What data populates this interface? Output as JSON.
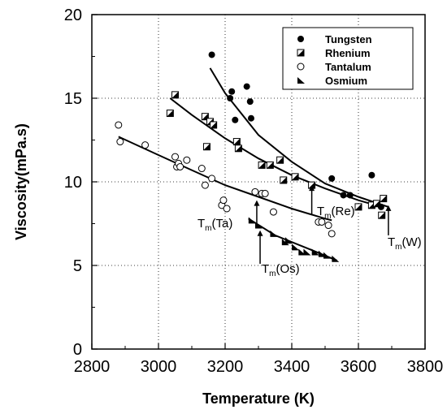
{
  "chart_data": {
    "type": "scatter",
    "xlabel": "Temperature (K)",
    "ylabel": "Viscosity(mPa.s)",
    "xlim": [
      2800,
      3800
    ],
    "ylim": [
      0,
      20
    ],
    "xticks": [
      2800,
      3000,
      3200,
      3400,
      3600,
      3800
    ],
    "yticks": [
      0,
      5,
      10,
      15,
      20
    ],
    "legend_position": "top-right",
    "series": [
      {
        "name": "Tungsten",
        "marker": "filled-circle",
        "points": [
          [
            3160,
            17.6
          ],
          [
            3215,
            15.0
          ],
          [
            3220,
            15.4
          ],
          [
            3230,
            13.7
          ],
          [
            3265,
            15.7
          ],
          [
            3275,
            14.8
          ],
          [
            3278,
            13.8
          ],
          [
            3520,
            10.2
          ],
          [
            3555,
            9.2
          ],
          [
            3575,
            9.2
          ],
          [
            3640,
            10.4
          ],
          [
            3668,
            8.5
          ]
        ],
        "fit": [
          [
            3155,
            16.8
          ],
          [
            3200,
            15.3
          ],
          [
            3300,
            12.8
          ],
          [
            3400,
            11.2
          ],
          [
            3500,
            9.9
          ],
          [
            3600,
            9.1
          ],
          [
            3690,
            8.5
          ]
        ]
      },
      {
        "name": "Rhenium",
        "marker": "half-filled-square",
        "points": [
          [
            3035,
            14.1
          ],
          [
            3050,
            15.2
          ],
          [
            3140,
            13.9
          ],
          [
            3145,
            12.1
          ],
          [
            3155,
            13.6
          ],
          [
            3165,
            13.4
          ],
          [
            3235,
            12.4
          ],
          [
            3240,
            12.0
          ],
          [
            3310,
            11.0
          ],
          [
            3335,
            11.0
          ],
          [
            3365,
            11.3
          ],
          [
            3375,
            10.1
          ],
          [
            3410,
            10.3
          ],
          [
            3460,
            9.8
          ],
          [
            3600,
            8.5
          ],
          [
            3640,
            8.6
          ],
          [
            3655,
            8.7
          ],
          [
            3670,
            8.0
          ],
          [
            3675,
            9.0
          ]
        ],
        "fit": [
          [
            3035,
            15.0
          ],
          [
            3100,
            14.0
          ],
          [
            3200,
            12.6
          ],
          [
            3300,
            11.4
          ],
          [
            3400,
            10.4
          ],
          [
            3500,
            9.6
          ],
          [
            3600,
            8.9
          ],
          [
            3670,
            8.5
          ]
        ]
      },
      {
        "name": "Tantalum",
        "marker": "open-circle",
        "points": [
          [
            2880,
            13.4
          ],
          [
            2885,
            12.4
          ],
          [
            2960,
            12.2
          ],
          [
            3050,
            11.5
          ],
          [
            3055,
            10.9
          ],
          [
            3060,
            11.1
          ],
          [
            3065,
            10.9
          ],
          [
            3085,
            11.3
          ],
          [
            3130,
            10.8
          ],
          [
            3140,
            9.8
          ],
          [
            3160,
            10.2
          ],
          [
            3190,
            8.6
          ],
          [
            3195,
            8.9
          ],
          [
            3205,
            8.4
          ],
          [
            3290,
            9.4
          ],
          [
            3310,
            9.3
          ],
          [
            3320,
            9.3
          ],
          [
            3345,
            8.2
          ],
          [
            3480,
            7.6
          ],
          [
            3490,
            7.6
          ],
          [
            3510,
            7.4
          ],
          [
            3520,
            6.9
          ]
        ],
        "fit": [
          [
            2880,
            12.7
          ],
          [
            3000,
            11.6
          ],
          [
            3100,
            10.7
          ],
          [
            3200,
            9.8
          ],
          [
            3300,
            9.1
          ],
          [
            3400,
            8.4
          ],
          [
            3500,
            7.8
          ],
          [
            3520,
            7.7
          ]
        ]
      },
      {
        "name": "Osmium",
        "marker": "filled-triangle",
        "points": [
          [
            3280,
            7.7
          ],
          [
            3300,
            7.4
          ],
          [
            3345,
            6.9
          ],
          [
            3380,
            6.4
          ],
          [
            3390,
            6.5
          ],
          [
            3410,
            6.1
          ],
          [
            3430,
            5.8
          ],
          [
            3445,
            5.8
          ],
          [
            3470,
            5.8
          ],
          [
            3490,
            5.7
          ],
          [
            3505,
            5.6
          ],
          [
            3530,
            5.4
          ]
        ],
        "fit": [
          [
            3270,
            7.8
          ],
          [
            3350,
            6.8
          ],
          [
            3450,
            6.0
          ],
          [
            3535,
            5.3
          ]
        ]
      }
    ],
    "annotations": [
      {
        "base": "T",
        "sub": "m",
        "rest": "(Ta)",
        "arrow_x": 3295,
        "arrow_from": 7.3,
        "arrow_to": 8.9
      },
      {
        "base": "T",
        "sub": "m",
        "rest": "(Re)",
        "arrow_x": 3460,
        "arrow_from": 8.0,
        "arrow_to": 9.8
      },
      {
        "base": "T",
        "sub": "m",
        "rest": "(Os)",
        "arrow_x": 3305,
        "arrow_from": 5.1,
        "arrow_to": 7.1
      },
      {
        "base": "T",
        "sub": "m",
        "rest": "(W)",
        "arrow_x": 3690,
        "arrow_from": 6.8,
        "arrow_to": 8.6
      }
    ]
  }
}
